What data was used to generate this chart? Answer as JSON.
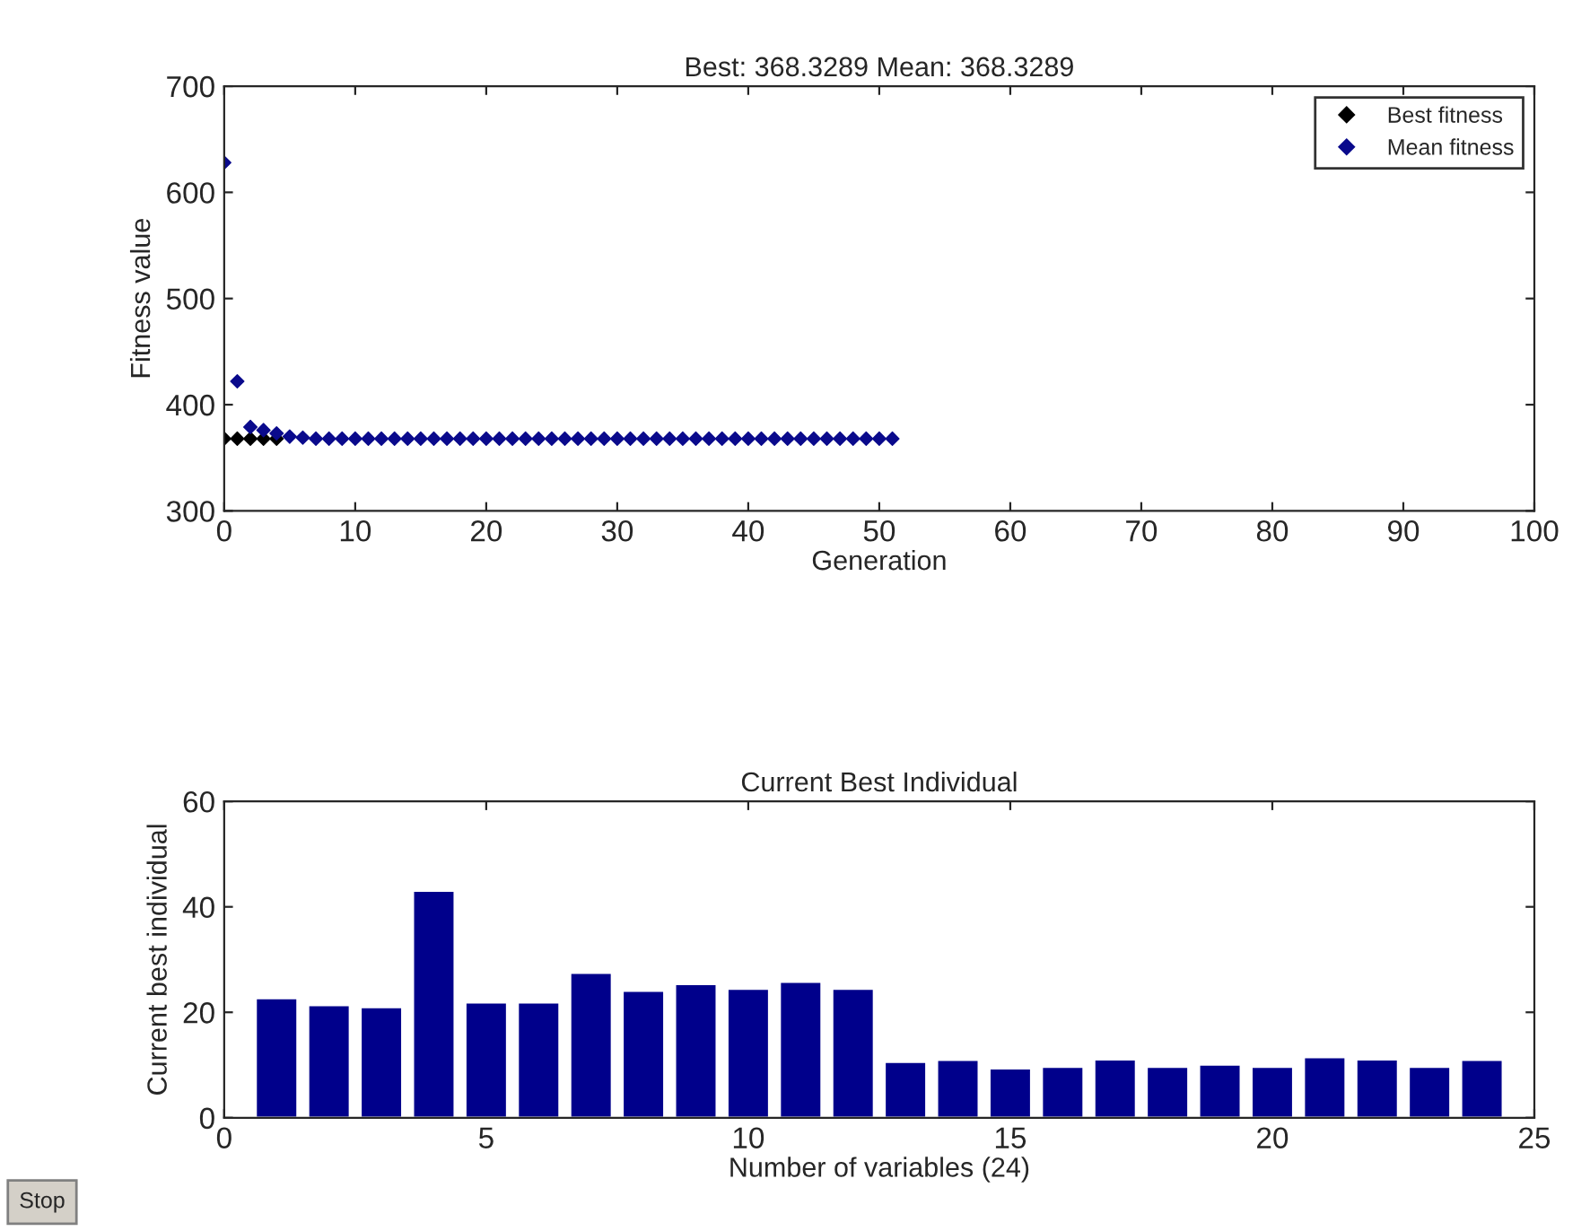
{
  "chart_data": [
    {
      "type": "scatter",
      "title": "Best: 368.3289 Mean: 368.3289",
      "xlabel": "Generation",
      "ylabel": "Fitness value",
      "xlim": [
        0,
        100
      ],
      "xticks": [
        0,
        10,
        20,
        30,
        40,
        50,
        60,
        70,
        80,
        90,
        100
      ],
      "ylim": [
        300,
        700
      ],
      "yticks": [
        300,
        400,
        500,
        600,
        700
      ],
      "marker": "diamond",
      "grid": false,
      "legend": "top right",
      "series": [
        {
          "name": "Best fitness",
          "color": "#000000",
          "x": [
            0,
            1,
            2,
            3,
            4
          ],
          "values": [
            368,
            368,
            368,
            368,
            368
          ]
        },
        {
          "name": "Mean fitness",
          "color": "#0a0a8c",
          "x": [
            0,
            1,
            2,
            3,
            4,
            5,
            6,
            7,
            8,
            9,
            10,
            11,
            12,
            13,
            14,
            15,
            16,
            17,
            18,
            19,
            20,
            21,
            22,
            23,
            24,
            25,
            26,
            27,
            28,
            29,
            30,
            31,
            32,
            33,
            34,
            35,
            36,
            37,
            38,
            39,
            40,
            41,
            42,
            43,
            44,
            45,
            46,
            47,
            48,
            49,
            50,
            51
          ],
          "values": [
            628,
            422,
            379,
            376,
            373,
            370,
            369,
            368,
            368,
            368,
            368,
            368,
            368,
            368,
            368,
            368,
            368,
            368,
            368,
            368,
            368,
            368,
            368,
            368,
            368,
            368,
            368,
            368,
            368,
            368,
            368,
            368,
            368,
            368,
            368,
            368,
            368,
            368,
            368,
            368,
            368,
            368,
            368,
            368,
            368,
            368,
            368,
            368,
            368,
            368,
            368,
            368
          ]
        }
      ]
    },
    {
      "type": "bar",
      "title": "Current Best Individual",
      "xlabel": "Number of variables (24)",
      "ylabel": "Current best individual",
      "xlim": [
        0,
        25
      ],
      "xticks": [
        0,
        5,
        10,
        15,
        20,
        25
      ],
      "ylim": [
        0,
        60
      ],
      "yticks": [
        0,
        20,
        40,
        60
      ],
      "grid": false,
      "annotations": [
        "Stop"
      ],
      "series": [
        {
          "color": "#00008b",
          "x": [
            1,
            2,
            3,
            4,
            5,
            6,
            7,
            8,
            9,
            10,
            11,
            12,
            13,
            14,
            15,
            16,
            17,
            18,
            19,
            20,
            21,
            22,
            23,
            24
          ],
          "values": [
            22.7,
            21.4,
            21.0,
            43.1,
            21.9,
            21.9,
            27.5,
            24.1,
            25.4,
            24.5,
            25.8,
            24.5,
            10.6,
            11.0,
            9.4,
            9.7,
            11.1,
            9.7,
            10.1,
            9.7,
            11.5,
            11.1,
            9.7,
            11.0
          ]
        }
      ]
    }
  ]
}
